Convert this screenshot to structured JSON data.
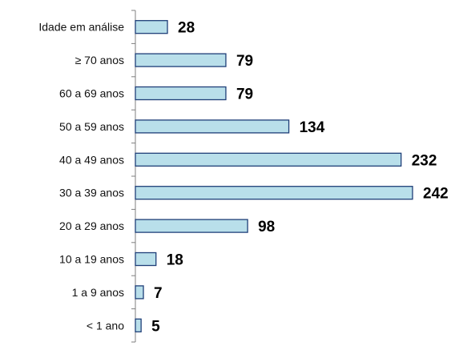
{
  "chart_data": {
    "type": "bar",
    "orientation": "horizontal",
    "categories": [
      "Idade em análise",
      "≥ 70 anos",
      "60 a 69 anos",
      "50 a 59 anos",
      "40 a 49 anos",
      "30 a 39 anos",
      "20 a 29 anos",
      "10 a 19 anos",
      "1 a 9 anos",
      "< 1 ano"
    ],
    "values": [
      28,
      79,
      79,
      134,
      232,
      242,
      98,
      18,
      7,
      5
    ],
    "value_labels": [
      "28",
      "79",
      "79",
      "134",
      "232",
      "242",
      "98",
      "18",
      "7",
      "5"
    ],
    "xlim": [
      0,
      242
    ],
    "grid": false,
    "legend": "none",
    "colors": {
      "bar_fill": "#b9dfea",
      "bar_stroke": "#1f3f78",
      "axis": "#7f7f7f"
    }
  }
}
